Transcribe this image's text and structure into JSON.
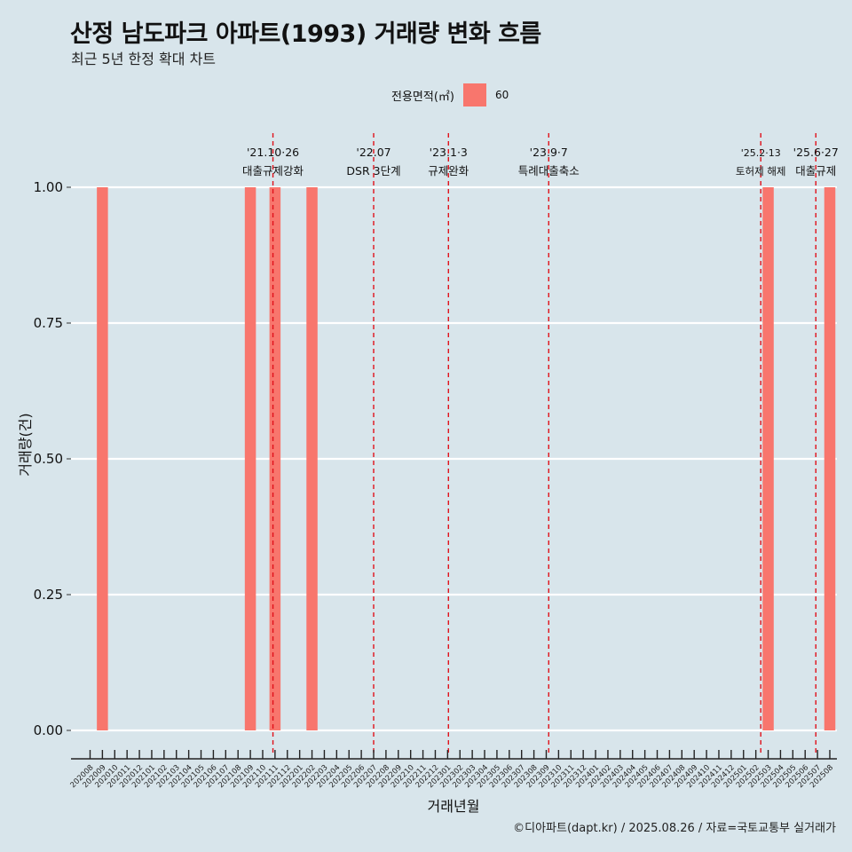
{
  "header": {
    "title": "산정 남도파크 아파트(1993) 거래량 변화 흐름",
    "subtitle": "최근 5년 한정 확대 차트"
  },
  "legend": {
    "title": "전용면적(㎡)",
    "items": [
      {
        "label": "60",
        "color": "#f8766d"
      }
    ]
  },
  "caption": "©디아파트(dapt.kr) / 2025.08.26 / 자료=국토교통부 실거래가",
  "chart_data": {
    "type": "bar",
    "xlabel": "거래년월",
    "ylabel": "거래량(건)",
    "ylim": [
      0,
      1
    ],
    "grid": true,
    "legend_position": "top",
    "y_ticks": [
      "0.00",
      "0.25",
      "0.50",
      "0.75",
      "1.00"
    ],
    "categories": [
      "202008",
      "202009",
      "202010",
      "202011",
      "202012",
      "202101",
      "202102",
      "202103",
      "202104",
      "202105",
      "202106",
      "202107",
      "202108",
      "202109",
      "202110",
      "202111",
      "202112",
      "202201",
      "202202",
      "202203",
      "202204",
      "202205",
      "202206",
      "202207",
      "202208",
      "202209",
      "202210",
      "202211",
      "202212",
      "202301",
      "202302",
      "202303",
      "202304",
      "202305",
      "202306",
      "202307",
      "202308",
      "202309",
      "202310",
      "202311",
      "202312",
      "202401",
      "202402",
      "202403",
      "202404",
      "202405",
      "202406",
      "202407",
      "202408",
      "202409",
      "202410",
      "202411",
      "202412",
      "202501",
      "202502",
      "202503",
      "202504",
      "202505",
      "202506",
      "202507",
      "202508"
    ],
    "series": [
      {
        "name": "60",
        "color": "#f8766d",
        "values": [
          {
            "x": "202009",
            "y": 1
          },
          {
            "x": "202109",
            "y": 1
          },
          {
            "x": "202111",
            "y": 1
          },
          {
            "x": "202202",
            "y": 1
          },
          {
            "x": "202503",
            "y": 1
          },
          {
            "x": "202508",
            "y": 1
          }
        ]
      }
    ],
    "annotations": [
      {
        "date": "2021-10-26",
        "line1": "'21.10·26",
        "line2": "대출규제강화"
      },
      {
        "date": "2022-07-01",
        "line1": "'22.07",
        "line2": "DSR 3단계"
      },
      {
        "date": "2023-01-03",
        "line1": "'23.1·3",
        "line2": "규제완화"
      },
      {
        "date": "2023-09-07",
        "line1": "'23.9·7",
        "line2": "특례대출축소"
      },
      {
        "date": "2025-02-13",
        "line1": "'25.2·13",
        "line2": "토허제 해제"
      },
      {
        "date": "2025-06-27",
        "line1": "'25.6·27",
        "line2": "대출규제"
      }
    ]
  }
}
